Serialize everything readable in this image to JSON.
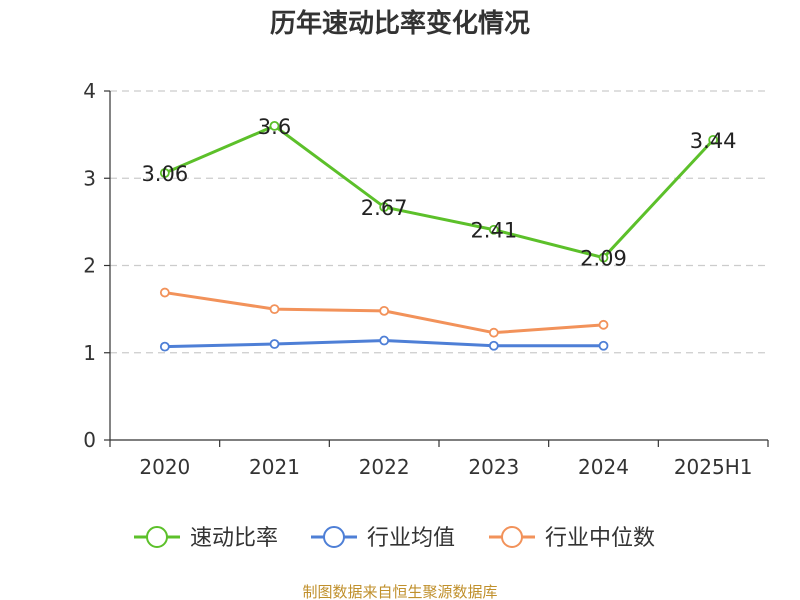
{
  "chart_data": {
    "type": "line",
    "title": "历年速动比率变化情况",
    "categories": [
      "2020",
      "2021",
      "2022",
      "2023",
      "2024",
      "2025H1"
    ],
    "ylim": [
      0,
      4
    ],
    "yticks": [
      "0",
      "1",
      "2",
      "3",
      "4"
    ],
    "grid": true,
    "legend_position": "bottom",
    "series": [
      {
        "name": "速动比率",
        "color": "#5cc02a",
        "values": [
          3.06,
          3.6,
          2.67,
          2.41,
          2.09,
          3.44
        ],
        "labels": [
          "3.06",
          "3.6",
          "2.67",
          "2.41",
          "2.09",
          "3.44"
        ]
      },
      {
        "name": "行业均值",
        "color": "#4e7fd6",
        "values": [
          1.07,
          1.1,
          1.14,
          1.08,
          1.08,
          null
        ]
      },
      {
        "name": "行业中位数",
        "color": "#f2925a",
        "values": [
          1.69,
          1.5,
          1.48,
          1.23,
          1.32,
          null
        ]
      }
    ]
  },
  "source": "制图数据来自恒生聚源数据库"
}
